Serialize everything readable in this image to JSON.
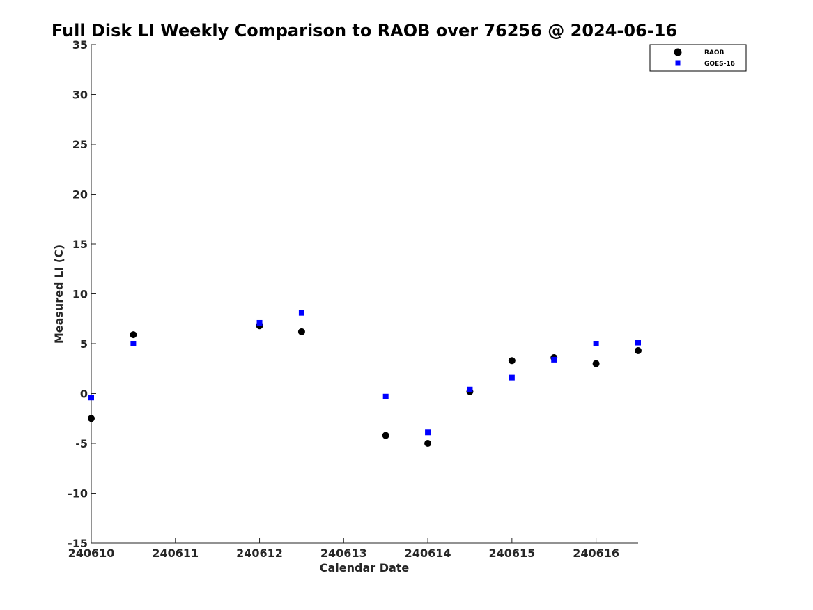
{
  "chart_data": {
    "type": "scatter",
    "title": "Full Disk LI Weekly Comparison to RAOB over 76256 @ 2024-06-16",
    "xlabel": "Calendar Date",
    "ylabel": "Measured LI (C)",
    "xlim": [
      "240610",
      "240616.5"
    ],
    "ylim": [
      -15,
      35
    ],
    "x_ticks": [
      "240610",
      "240611",
      "240612",
      "240613",
      "240614",
      "240615",
      "240616"
    ],
    "y_ticks": [
      35,
      30,
      25,
      20,
      15,
      10,
      5,
      0,
      -5,
      -10,
      -15
    ],
    "grid": false,
    "legend_position": "top-right",
    "series": [
      {
        "name": "RAOB",
        "marker": "circle",
        "color": "#000000",
        "points": [
          {
            "x": "240610 00Z",
            "y": -2.5
          },
          {
            "x": "240610 12Z",
            "y": 5.9
          },
          {
            "x": "240612 00Z",
            "y": 6.8
          },
          {
            "x": "240612 12Z",
            "y": 6.2
          },
          {
            "x": "240613 12Z",
            "y": -4.2
          },
          {
            "x": "240614 00Z",
            "y": -5.0
          },
          {
            "x": "240614 12Z",
            "y": 0.2
          },
          {
            "x": "240615 00Z",
            "y": 3.3
          },
          {
            "x": "240615 12Z",
            "y": 3.6
          },
          {
            "x": "240616 00Z",
            "y": 3.0
          },
          {
            "x": "240616 12Z",
            "y": 4.3
          }
        ]
      },
      {
        "name": "GOES-16",
        "marker": "square",
        "color": "#0000ff",
        "points": [
          {
            "x": "240610 00Z",
            "y": -0.4
          },
          {
            "x": "240610 12Z",
            "y": 5.0
          },
          {
            "x": "240612 00Z",
            "y": 7.1
          },
          {
            "x": "240612 12Z",
            "y": 8.1
          },
          {
            "x": "240613 12Z",
            "y": -0.3
          },
          {
            "x": "240614 00Z",
            "y": -3.9
          },
          {
            "x": "240614 12Z",
            "y": 0.4
          },
          {
            "x": "240615 00Z",
            "y": 1.6
          },
          {
            "x": "240615 12Z",
            "y": 3.4
          },
          {
            "x": "240616 00Z",
            "y": 5.0
          },
          {
            "x": "240616 12Z",
            "y": 5.1
          }
        ]
      }
    ]
  }
}
